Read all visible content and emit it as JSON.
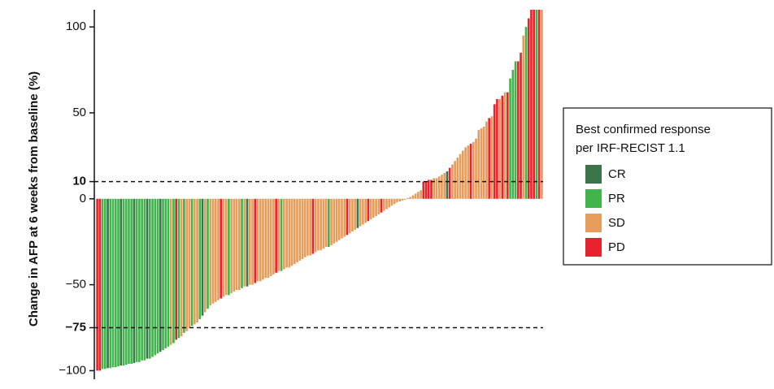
{
  "chart_data": {
    "type": "waterfall",
    "y_label": "Change in AFP at 6 weeks from baseline (%)",
    "legend_title": [
      "Best confirmed response",
      "per IRF-RECIST 1.1"
    ],
    "ylim": [
      -105,
      110
    ],
    "yticks": [
      {
        "value": -100,
        "label": "−100"
      },
      {
        "value": -75,
        "label": "−75"
      },
      {
        "value": -50,
        "label": "−50"
      },
      0,
      10,
      50,
      100
    ],
    "reference_lines": [
      10,
      -75
    ],
    "series": [
      {
        "name": "CR",
        "color": "#3b7549",
        "values": [
          null,
          null,
          null,
          null,
          -98.5,
          null,
          null,
          null,
          null,
          -97,
          null,
          null,
          null,
          null,
          -95.5,
          null,
          null,
          null,
          null,
          -93,
          null,
          null,
          null,
          null,
          -89,
          null,
          null,
          null,
          null,
          null,
          null,
          null,
          null,
          null,
          null,
          null,
          null,
          null,
          null,
          null,
          -68,
          null,
          null,
          null,
          null,
          null,
          null,
          null,
          null,
          null,
          null,
          null,
          null,
          null,
          null,
          null,
          null,
          -51,
          null,
          null,
          null,
          null,
          null,
          null,
          null,
          null,
          null,
          null,
          null,
          null,
          null,
          null,
          null,
          null,
          null,
          null,
          null,
          null,
          null,
          null,
          null,
          null,
          null,
          null,
          null,
          null,
          null,
          null,
          null,
          null,
          null,
          null,
          null,
          null,
          null,
          null,
          null,
          null,
          null,
          -17,
          null,
          null,
          null,
          null,
          null,
          null,
          null,
          null,
          null,
          null,
          null,
          null,
          null,
          null,
          null,
          null,
          null,
          null,
          null,
          null,
          null,
          null,
          null,
          null,
          null,
          null,
          null,
          null,
          null,
          null,
          null,
          null,
          null,
          16,
          null,
          null,
          null,
          null,
          null,
          null,
          null,
          null,
          null,
          null,
          null,
          null,
          null,
          null,
          null,
          null,
          null,
          null,
          null,
          null,
          null,
          null,
          null,
          null,
          null,
          null,
          null,
          null,
          null,
          null,
          null,
          null,
          null,
          null,
          null,
          null
        ]
      },
      {
        "name": "PR",
        "color": "#3fb54b",
        "values": [
          null,
          null,
          -99,
          -99,
          null,
          -98.5,
          -98,
          -98,
          -97.5,
          null,
          -97,
          -96.5,
          -96,
          -96,
          null,
          -95,
          -95,
          -94,
          -94,
          null,
          -93,
          -92,
          -91,
          -90,
          null,
          -88,
          -87,
          -86,
          null,
          -84,
          null,
          -81,
          null,
          -78,
          null,
          null,
          -74,
          null,
          null,
          -70,
          null,
          null,
          -64,
          null,
          null,
          null,
          null,
          null,
          null,
          null,
          -56,
          null,
          null,
          null,
          null,
          -52,
          null,
          null,
          null,
          null,
          null,
          null,
          null,
          null,
          null,
          null,
          null,
          null,
          null,
          null,
          -42,
          null,
          null,
          null,
          null,
          null,
          null,
          null,
          null,
          null,
          null,
          null,
          null,
          null,
          null,
          null,
          null,
          null,
          -28,
          null,
          null,
          null,
          null,
          null,
          null,
          null,
          null,
          null,
          null,
          null,
          null,
          null,
          null,
          null,
          null,
          null,
          null,
          null,
          null,
          null,
          null,
          null,
          null,
          null,
          null,
          null,
          null,
          null,
          null,
          null,
          null,
          null,
          null,
          null,
          null,
          null,
          null,
          null,
          null,
          null,
          null,
          null,
          null,
          null,
          null,
          null,
          null,
          null,
          null,
          null,
          null,
          null,
          null,
          null,
          null,
          null,
          null,
          null,
          null,
          null,
          null,
          null,
          null,
          null,
          null,
          null,
          null,
          70,
          75,
          80,
          null,
          null,
          null,
          100,
          null,
          null,
          null,
          130,
          null,
          null
        ]
      },
      {
        "name": "SD",
        "color": "#e69c5b",
        "values": [
          null,
          null,
          null,
          null,
          null,
          null,
          null,
          null,
          null,
          null,
          null,
          null,
          null,
          null,
          null,
          null,
          null,
          null,
          null,
          null,
          null,
          null,
          null,
          null,
          null,
          null,
          null,
          null,
          -85,
          null,
          null,
          null,
          -80,
          null,
          -77,
          -75,
          null,
          -73,
          -72,
          null,
          null,
          -66,
          null,
          -62,
          -61,
          -60,
          -59,
          null,
          -57,
          -56,
          null,
          -55,
          -54,
          -53,
          -53,
          null,
          -51,
          null,
          -50,
          -50,
          null,
          -48,
          -48,
          -47,
          -46,
          -46,
          -45,
          -44,
          null,
          -42,
          null,
          -41,
          -40,
          -40,
          -39,
          -38,
          -37,
          -36,
          -35,
          -34,
          -33,
          -33,
          null,
          -31,
          -30,
          -30,
          -29,
          -28,
          null,
          -27,
          -26,
          -25,
          -24,
          -23,
          -22,
          null,
          -20,
          -19,
          -18,
          null,
          -16,
          -15,
          -14,
          null,
          -12,
          -11,
          -10,
          -9,
          null,
          -7,
          -6,
          -5,
          -4,
          -3,
          -2,
          -1.5,
          -1,
          -0.5,
          0.5,
          1,
          2,
          3,
          4,
          5,
          null,
          null,
          null,
          null,
          12,
          12,
          13,
          14,
          15,
          null,
          null,
          20,
          22,
          24,
          26,
          28,
          30,
          31,
          null,
          33,
          35,
          40,
          41,
          42,
          45,
          null,
          48,
          null,
          null,
          58,
          null,
          62,
          null,
          null,
          null,
          null,
          null,
          null,
          95,
          null,
          null,
          null,
          null,
          null,
          null,
          150
        ]
      },
      {
        "name": "PD",
        "color": "#e8232b",
        "values": [
          -100,
          -100,
          null,
          null,
          null,
          null,
          null,
          null,
          null,
          null,
          null,
          null,
          null,
          null,
          null,
          null,
          null,
          null,
          null,
          null,
          null,
          null,
          null,
          null,
          null,
          null,
          null,
          null,
          null,
          null,
          -82,
          null,
          null,
          null,
          null,
          null,
          null,
          null,
          null,
          null,
          null,
          null,
          null,
          null,
          null,
          null,
          null,
          -58,
          null,
          null,
          null,
          null,
          null,
          null,
          null,
          null,
          null,
          null,
          null,
          null,
          -49,
          null,
          null,
          null,
          null,
          null,
          null,
          null,
          -43,
          null,
          null,
          null,
          null,
          null,
          null,
          null,
          null,
          null,
          null,
          null,
          null,
          null,
          -32,
          null,
          null,
          null,
          null,
          null,
          null,
          null,
          null,
          null,
          null,
          null,
          null,
          -21,
          null,
          null,
          null,
          null,
          null,
          null,
          null,
          -13,
          null,
          null,
          null,
          null,
          -8,
          null,
          null,
          null,
          null,
          null,
          null,
          null,
          null,
          null,
          null,
          null,
          null,
          null,
          null,
          null,
          10,
          10,
          11,
          11,
          null,
          null,
          null,
          null,
          null,
          null,
          18,
          null,
          null,
          null,
          null,
          null,
          null,
          null,
          32,
          null,
          null,
          null,
          null,
          null,
          null,
          47,
          null,
          55,
          58,
          null,
          60,
          null,
          62,
          null,
          null,
          null,
          80,
          85,
          null,
          null,
          105,
          115,
          120,
          null,
          140,
          null
        ]
      }
    ]
  }
}
